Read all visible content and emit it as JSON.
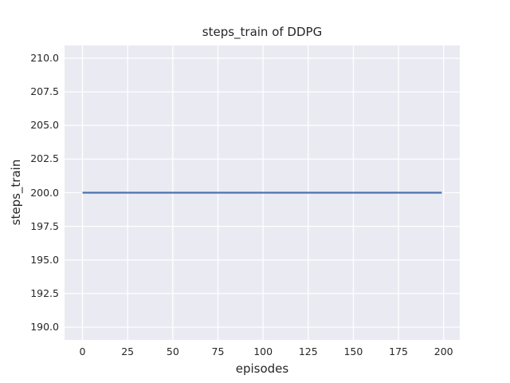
{
  "chart_data": {
    "type": "line",
    "title": "steps_train of DDPG",
    "xlabel": "episodes",
    "ylabel": "steps_train",
    "x_tick_labels": [
      "0",
      "25",
      "50",
      "75",
      "100",
      "125",
      "150",
      "175",
      "200"
    ],
    "x_tick_values": [
      0,
      25,
      50,
      75,
      100,
      125,
      150,
      175,
      200
    ],
    "y_tick_labels": [
      "190.0",
      "192.5",
      "195.0",
      "197.5",
      "200.0",
      "202.5",
      "205.0",
      "207.5",
      "210.0"
    ],
    "y_tick_values": [
      190,
      192.5,
      195,
      197.5,
      200,
      202.5,
      205,
      207.5,
      210
    ],
    "xlim": [
      -9.95,
      208.95
    ],
    "ylim": [
      189.05,
      210.95
    ],
    "grid": true,
    "legend": "none",
    "series": [
      {
        "name": "steps_train",
        "color": "#4C72B0",
        "x": [
          0,
          199
        ],
        "y": [
          200,
          200
        ]
      }
    ],
    "colors": {
      "figure_background": "#FFFFFF",
      "axes_background": "#EAEAF2",
      "grid": "#FFFFFF",
      "text": "#262626"
    }
  }
}
